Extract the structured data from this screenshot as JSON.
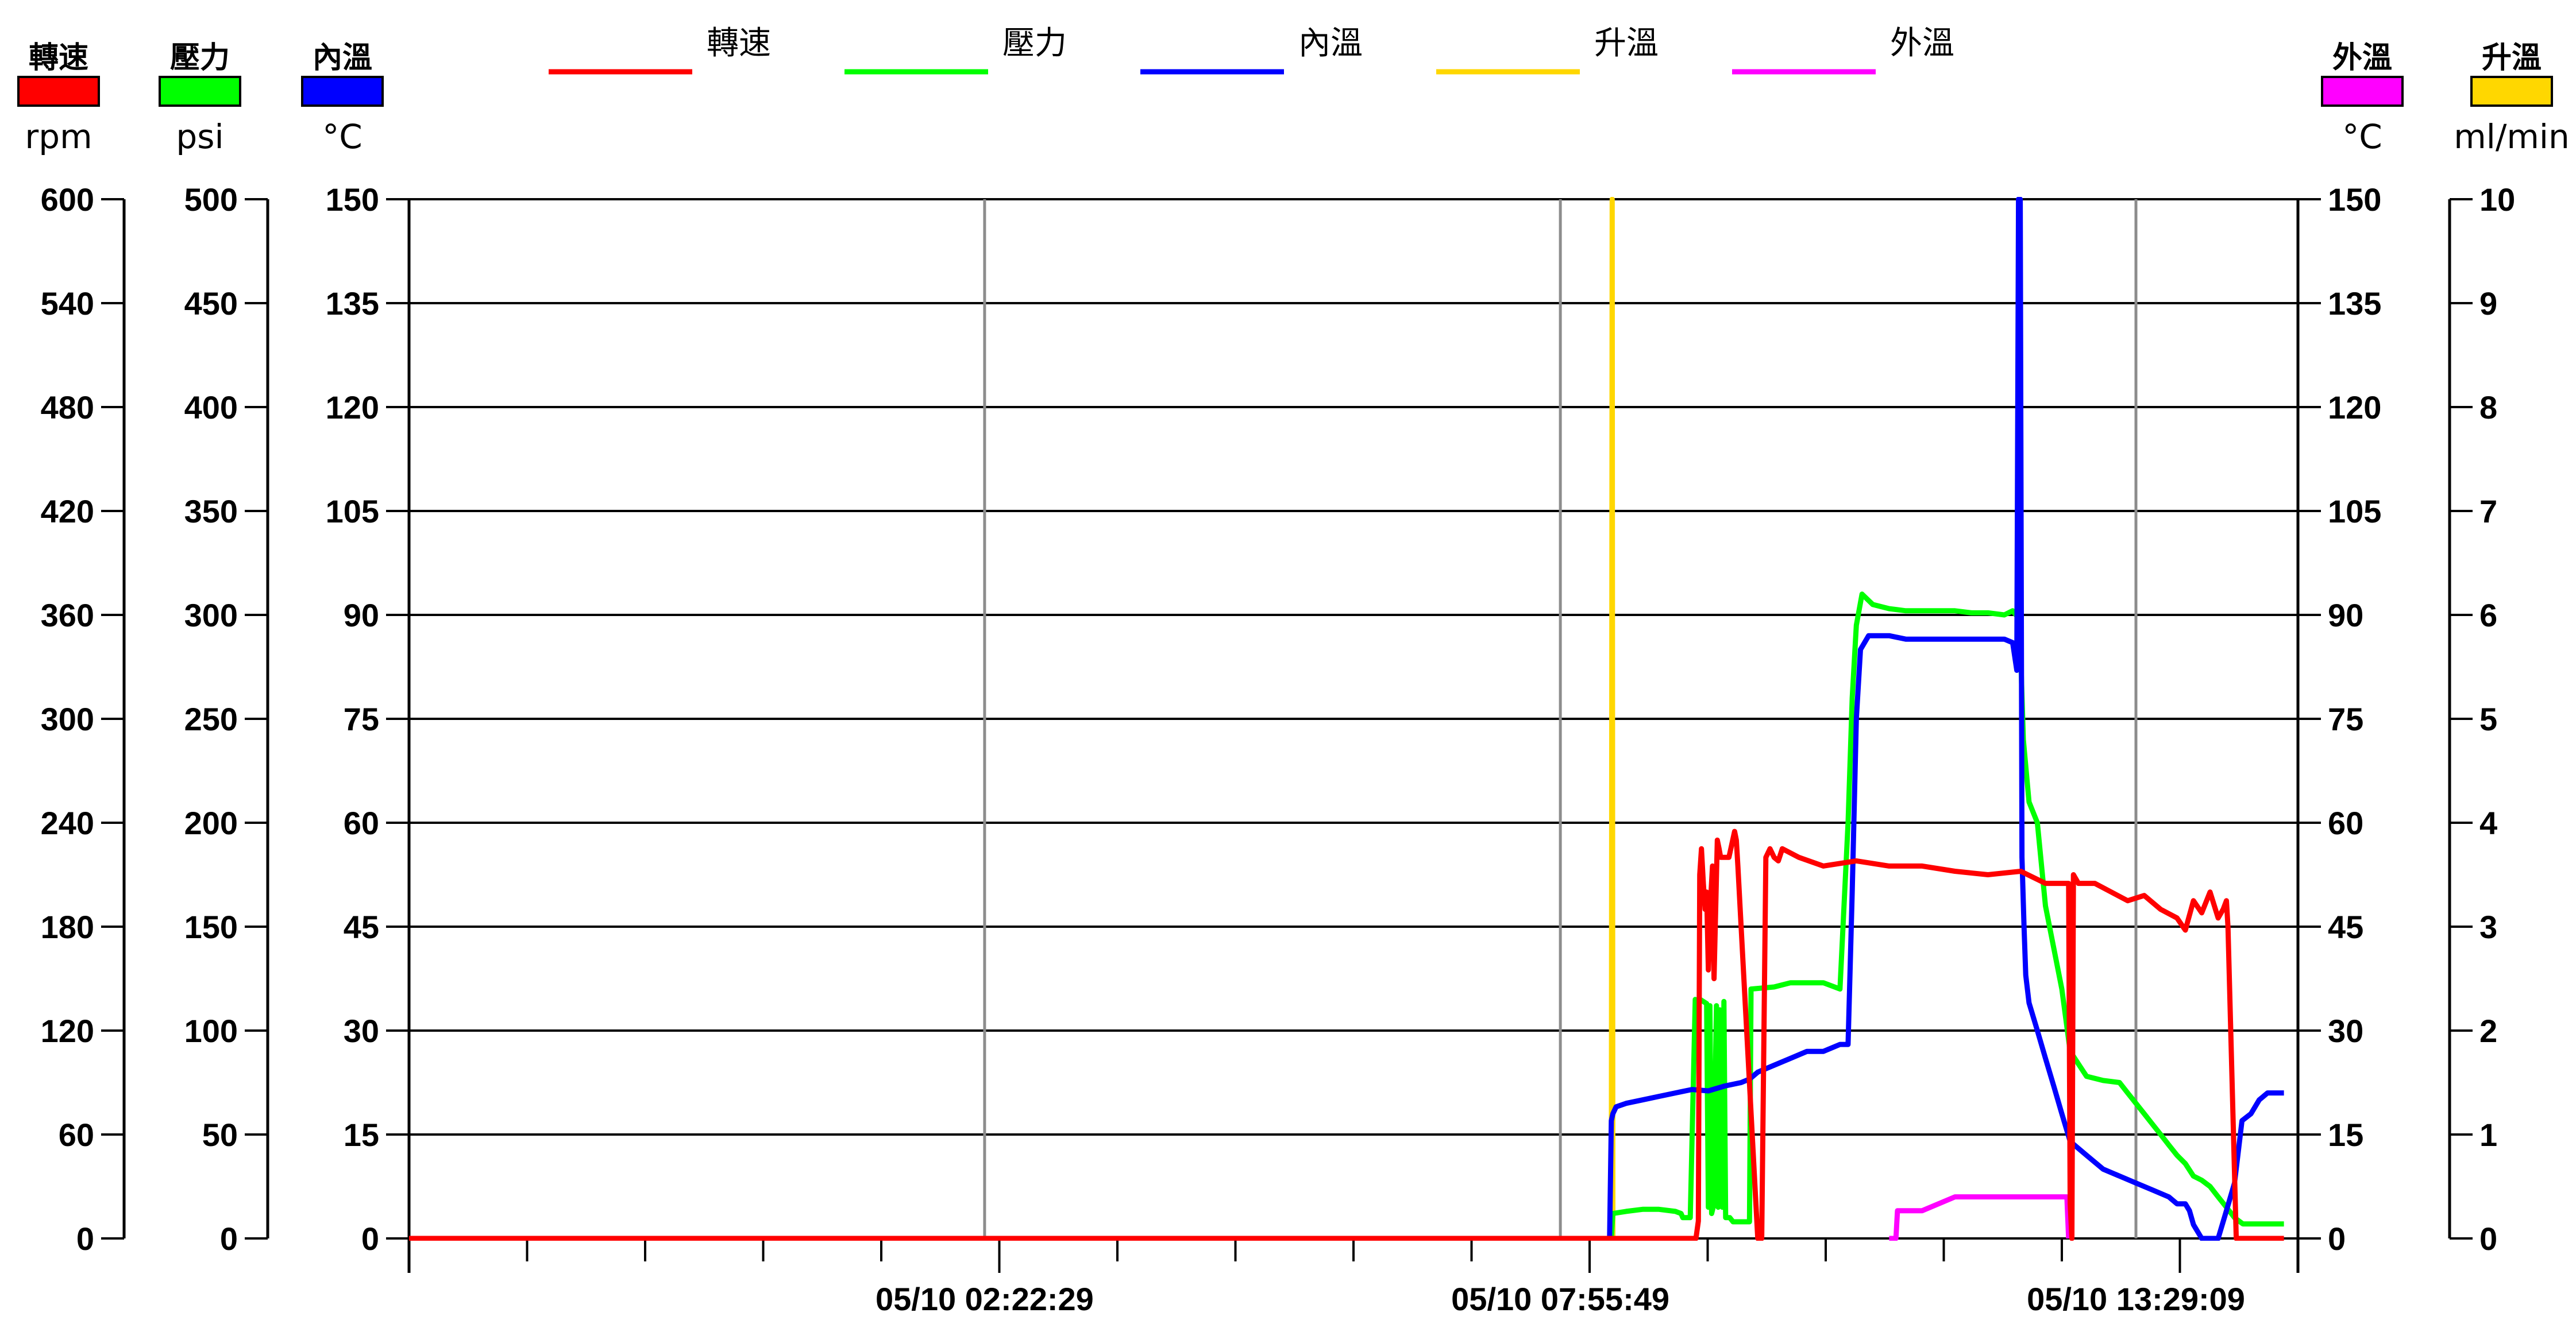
{
  "chart_data": {
    "type": "line",
    "x": [
      "05/10 02:22:29",
      "05/10 07:55:49",
      "05/10 13:29:09"
    ],
    "legend": [
      {
        "name": "轉速",
        "color": "#ff0000"
      },
      {
        "name": "壓力",
        "color": "#00ff00"
      },
      {
        "name": "內溫",
        "color": "#0000ff"
      },
      {
        "name": "升溫",
        "color": "#ffd700"
      },
      {
        "name": "外溫",
        "color": "#ff00ff"
      }
    ],
    "axes": {
      "rpm": {
        "title": "轉速",
        "unit": "rpm",
        "color": "#ff0000",
        "ticks": [
          "0",
          "60",
          "120",
          "180",
          "240",
          "300",
          "360",
          "420",
          "480",
          "540",
          "600"
        ],
        "ylim": [
          0,
          600
        ]
      },
      "psi": {
        "title": "壓力",
        "unit": "psi",
        "color": "#00ff00",
        "ticks": [
          "0",
          "50",
          "100",
          "150",
          "200",
          "250",
          "300",
          "350",
          "400",
          "450",
          "500"
        ],
        "ylim": [
          0,
          500
        ]
      },
      "inner": {
        "title": "內溫",
        "unit": "°C",
        "color": "#0000ff",
        "ticks": [
          "0",
          "15",
          "30",
          "45",
          "60",
          "75",
          "90",
          "105",
          "120",
          "135",
          "150"
        ],
        "ylim": [
          0,
          150
        ]
      },
      "outer": {
        "title": "外溫",
        "unit": "°C",
        "color": "#ff00ff",
        "ticks": [
          "0",
          "15",
          "30",
          "45",
          "60",
          "75",
          "90",
          "105",
          "120",
          "135",
          "150"
        ],
        "ylim": [
          0,
          150
        ]
      },
      "rate": {
        "title": "升溫",
        "unit": "ml/min",
        "color": "#ffd700",
        "ticks": [
          "0",
          "1",
          "2",
          "3",
          "4",
          "5",
          "6",
          "7",
          "8",
          "9",
          "10"
        ],
        "ylim": [
          0,
          10
        ]
      }
    },
    "xlim": [
      0,
      1
    ],
    "xtick_positions": [
      0.3333,
      0.6667,
      1.0
    ],
    "grid": true,
    "series": [
      {
        "name": "轉速",
        "axis": "rpm",
        "color": "#ff0000",
        "x": [
          0,
          0.7429,
          0.7452,
          0.7466,
          0.7474,
          0.7484,
          0.7495,
          0.7505,
          0.7514,
          0.7524,
          0.7534,
          0.7548,
          0.7557,
          0.7576,
          0.7586,
          0.7595,
          0.7605,
          0.7624,
          0.7643,
          0.7676,
          0.7686,
          0.7695,
          0.781,
          0.7833,
          0.7857,
          0.7881,
          0.7905,
          0.7929,
          0.7952,
          0.8048,
          0.819,
          0.8381,
          0.8571,
          0.8762,
          0.8952,
          0.9143,
          0.9333,
          0.9476,
          0.961,
          0.9619,
          0.9629,
          0.9638,
          0.9667,
          0.9762,
          0.9857,
          0.9952,
          1.0048,
          1.0143,
          1.0238,
          1.0286,
          1.0333,
          1.0381,
          1.0429,
          1.0476,
          1.0505,
          1.0524,
          1.0533,
          1.0581,
          1.0857
        ],
        "values": [
          0,
          0,
          0,
          10,
          210,
          225,
          205,
          190,
          200,
          155,
          190,
          215,
          150,
          230,
          225,
          220,
          220,
          220,
          220,
          235,
          230,
          215,
          0,
          0,
          220,
          225,
          220,
          218,
          225,
          220,
          215,
          218,
          215,
          215,
          212,
          210,
          212,
          205,
          205,
          20,
          0,
          210,
          205,
          205,
          200,
          195,
          198,
          190,
          185,
          178,
          195,
          188,
          200,
          185,
          190,
          195,
          180,
          0,
          0
        ]
      },
      {
        "name": "壓力",
        "axis": "psi",
        "color": "#00ff00",
        "x": [
          0,
          0.6952,
          0.6962,
          0.6971,
          0.7048,
          0.7143,
          0.7238,
          0.7333,
          0.7366,
          0.7376,
          0.7419,
          0.7448,
          0.7457,
          0.7476,
          0.7514,
          0.7524,
          0.7533,
          0.7543,
          0.7552,
          0.7571,
          0.7581,
          0.759,
          0.7605,
          0.7614,
          0.7624,
          0.7648,
          0.7667,
          0.7686,
          0.7714,
          0.7762,
          0.7771,
          0.7905,
          0.8,
          0.8095,
          0.819,
          0.8286,
          0.8333,
          0.8357,
          0.8381,
          0.8414,
          0.8476,
          0.8571,
          0.8667,
          0.8762,
          0.8857,
          0.8952,
          0.9048,
          0.9143,
          0.9238,
          0.9286,
          0.9305,
          0.9324,
          0.9333,
          0.9348,
          0.9381,
          0.9429,
          0.9476,
          0.9571,
          0.9619,
          0.9714,
          0.981,
          0.9905,
          0.9952,
          1.0,
          1.0048,
          1.0095,
          1.0143,
          1.019,
          1.0238,
          1.0286,
          1.0333,
          1.0381,
          1.0429,
          1.0476,
          1.0524,
          1.0571,
          1.0619,
          1.0857
        ],
        "values": [
          0,
          0,
          0,
          12,
          13,
          14,
          14,
          13,
          12,
          10,
          10,
          115,
          113,
          115,
          113,
          15,
          112,
          12,
          15,
          112,
          15,
          110,
          15,
          114,
          10,
          10,
          8,
          8,
          8,
          8,
          120,
          121,
          123,
          123,
          123,
          120,
          200,
          260,
          295,
          310,
          305,
          303,
          302,
          302,
          302,
          302,
          301,
          301,
          300,
          302,
          300,
          303,
          280,
          240,
          210,
          200,
          160,
          120,
          90,
          78,
          76,
          75,
          70,
          65,
          60,
          55,
          50,
          45,
          40,
          36,
          30,
          28,
          25,
          20,
          15,
          10,
          7,
          7
        ]
      },
      {
        "name": "內溫",
        "axis": "inner",
        "color": "#0000ff",
        "x": [
          0.6952,
          0.6962,
          0.6971,
          0.699,
          0.7048,
          0.7143,
          0.7238,
          0.7333,
          0.7429,
          0.7524,
          0.7619,
          0.7714,
          0.7762,
          0.781,
          0.7905,
          0.8,
          0.8095,
          0.819,
          0.8286,
          0.8333,
          0.8357,
          0.8381,
          0.8405,
          0.8452,
          0.8571,
          0.8667,
          0.8762,
          0.8857,
          0.8952,
          0.9048,
          0.9143,
          0.9238,
          0.9286,
          0.931,
          0.932,
          0.933,
          0.934,
          0.9352,
          0.9362,
          0.9381,
          0.9429,
          0.9476,
          0.9524,
          0.9571,
          0.9619,
          0.9714,
          0.981,
          0.9905,
          1.0,
          1.0095,
          1.019,
          1.0238,
          1.0286,
          1.031,
          1.0333,
          1.0381,
          1.0429,
          1.0476,
          1.0524,
          1.0571,
          1.0614,
          1.0666,
          1.0714,
          1.0762,
          1.0857
        ],
        "values": [
          0,
          17,
          18,
          19,
          19.5,
          20,
          20.5,
          21,
          21.5,
          21.3,
          22,
          22.5,
          23,
          24,
          25,
          26,
          27,
          27,
          28,
          28,
          50,
          75,
          85,
          87,
          87,
          86.5,
          86.5,
          86.5,
          86.5,
          86.5,
          86.5,
          86.5,
          86,
          82,
          150,
          150,
          55,
          45,
          38,
          34,
          30,
          26,
          22,
          18,
          14,
          12,
          10,
          9,
          8,
          7,
          6,
          5,
          5,
          4,
          2,
          0,
          0,
          0,
          4,
          8,
          17,
          18,
          20,
          21,
          21
        ]
      },
      {
        "name": "升溫",
        "axis": "rate",
        "color": "#ffd700",
        "x": [
          0.6962,
          0.6967,
          0.6971
        ],
        "values": [
          0,
          10,
          0
        ]
      },
      {
        "name": "外溫",
        "axis": "outer",
        "color": "#ff00ff",
        "x": [
          0.8571,
          0.861,
          0.8619,
          0.8714,
          0.8762,
          0.8952,
          0.9143,
          0.9333,
          0.9524,
          0.96,
          0.961
        ],
        "values": [
          0,
          0,
          4,
          4,
          4,
          6,
          6,
          6,
          6,
          6,
          0
        ]
      }
    ]
  }
}
